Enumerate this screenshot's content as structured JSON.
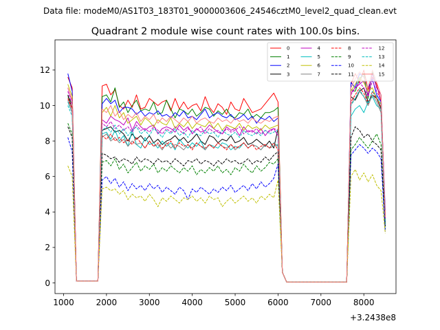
{
  "figure": {
    "suptitle": "Data file: modeM0/AS1T03_183T01_9000003606_24546cztM0_level2_quad_clean.evt"
  },
  "chart_data": {
    "type": "line",
    "title": "Quadrant 2 module wise count rates with 100.0s bins.",
    "xlabel": "",
    "ylabel": "",
    "x_offset_label": "+3.2438e8",
    "xlim": [
      800,
      8750
    ],
    "ylim": [
      -0.6,
      13.7
    ],
    "xticks": [
      1000,
      2000,
      3000,
      4000,
      5000,
      6000,
      7000,
      8000
    ],
    "yticks": [
      0,
      2,
      4,
      6,
      8,
      10,
      12
    ],
    "grid": false,
    "legend_position": "top-right",
    "legend_columns": 4,
    "x": [
      1100,
      1200,
      1300,
      1800,
      1900,
      2000,
      2100,
      2200,
      2300,
      2400,
      2500,
      2600,
      2700,
      2800,
      2900,
      3000,
      3100,
      3200,
      3300,
      3400,
      3500,
      3600,
      3700,
      3800,
      3900,
      4000,
      4100,
      4200,
      4300,
      4400,
      4500,
      4600,
      4700,
      4800,
      4900,
      5000,
      5100,
      5200,
      5300,
      5400,
      5500,
      5600,
      5700,
      5800,
      5900,
      6000,
      6100,
      6200,
      7600,
      7700,
      7800,
      7900,
      8000,
      8100,
      8200,
      8300,
      8400,
      8500
    ],
    "series": [
      {
        "name": "0",
        "color": "#ff0000",
        "dash": "solid",
        "values": [
          11.6,
          11.0,
          0.1,
          0.1,
          11.1,
          11.2,
          10.6,
          10.9,
          10.0,
          9.8,
          10.3,
          9.9,
          10.6,
          9.8,
          9.9,
          10.4,
          10.2,
          10.0,
          10.2,
          10.3,
          9.7,
          10.4,
          9.8,
          10.2,
          9.8,
          10.0,
          10.1,
          9.7,
          10.5,
          9.9,
          9.6,
          10.1,
          9.9,
          9.5,
          10.2,
          9.8,
          9.7,
          10.4,
          10.0,
          9.6,
          9.7,
          9.8,
          10.1,
          10.4,
          10.7,
          10.2,
          0.6,
          0.05,
          0.05,
          11.2,
          11.8,
          11.3,
          12.0,
          10.9,
          11.6,
          11.2,
          10.2,
          3.8
        ]
      },
      {
        "name": "1",
        "color": "#008000",
        "dash": "solid",
        "values": [
          10.5,
          10.1,
          0.1,
          0.1,
          10.5,
          10.6,
          10.2,
          11.0,
          9.9,
          10.2,
          9.6,
          10.0,
          10.3,
          9.7,
          9.8,
          9.7,
          10.2,
          9.5,
          9.6,
          10.3,
          9.8,
          9.3,
          9.8,
          9.7,
          9.5,
          9.8,
          9.4,
          9.6,
          9.9,
          9.8,
          9.4,
          9.7,
          9.5,
          9.8,
          9.4,
          9.3,
          9.6,
          9.5,
          9.8,
          9.3,
          9.5,
          9.3,
          9.6,
          9.6,
          9.7,
          9.9,
          0.6,
          0.05,
          0.05,
          10.9,
          10.8,
          11.5,
          11.8,
          10.4,
          11.9,
          11.0,
          10.6,
          3.6
        ]
      },
      {
        "name": "2",
        "color": "#0000ff",
        "dash": "solid",
        "values": [
          11.8,
          10.8,
          0.1,
          0.1,
          10.1,
          10.4,
          10.1,
          10.3,
          9.6,
          9.9,
          9.9,
          9.8,
          9.5,
          9.7,
          9.4,
          9.6,
          9.5,
          9.7,
          9.4,
          9.5,
          9.3,
          9.6,
          9.4,
          9.7,
          9.3,
          9.4,
          9.2,
          9.5,
          9.8,
          9.3,
          9.5,
          9.6,
          9.4,
          9.3,
          9.5,
          9.2,
          9.3,
          9.5,
          9.2,
          9.4,
          9.0,
          9.3,
          9.2,
          9.4,
          9.1,
          9.3,
          0.6,
          0.05,
          0.05,
          11.3,
          11.0,
          11.8,
          11.6,
          11.0,
          11.5,
          10.6,
          10.2,
          4.1
        ]
      },
      {
        "name": "3",
        "color": "#000000",
        "dash": "solid",
        "values": [
          10.6,
          9.8,
          0.1,
          0.1,
          8.6,
          8.7,
          8.8,
          8.5,
          8.6,
          8.4,
          8.0,
          8.4,
          8.1,
          8.3,
          8.0,
          8.3,
          7.9,
          8.1,
          7.8,
          8.0,
          8.1,
          8.3,
          8.0,
          8.2,
          7.9,
          8.1,
          8.4,
          8.0,
          7.8,
          8.3,
          8.2,
          7.9,
          8.1,
          8.0,
          8.3,
          7.9,
          8.0,
          8.2,
          7.8,
          7.9,
          8.1,
          7.9,
          7.7,
          8.0,
          7.6,
          8.7,
          0.6,
          0.05,
          0.05,
          10.5,
          10.3,
          10.8,
          11.0,
          10.2,
          10.6,
          10.4,
          9.8,
          3.5
        ]
      },
      {
        "name": "4",
        "color": "#bf00bf",
        "dash": "solid",
        "values": [
          11.0,
          10.2,
          0.1,
          0.1,
          9.2,
          9.0,
          9.4,
          9.2,
          9.1,
          8.9,
          9.3,
          8.6,
          9.1,
          8.8,
          8.6,
          8.8,
          8.9,
          8.4,
          8.7,
          8.8,
          8.7,
          8.5,
          8.9,
          8.6,
          8.8,
          8.4,
          8.7,
          8.5,
          8.6,
          8.9,
          8.7,
          8.5,
          8.4,
          8.8,
          8.6,
          8.7,
          8.3,
          8.8,
          8.5,
          8.6,
          8.4,
          8.7,
          8.3,
          8.6,
          8.7,
          8.3,
          0.6,
          0.05,
          0.05,
          10.7,
          11.0,
          11.2,
          11.4,
          10.6,
          11.8,
          11.0,
          10.6,
          3.7
        ]
      },
      {
        "name": "5",
        "color": "#00bfbf",
        "dash": "solid",
        "values": [
          10.2,
          9.6,
          0.1,
          0.1,
          8.4,
          8.5,
          8.1,
          8.6,
          8.0,
          8.3,
          7.7,
          8.6,
          7.8,
          7.6,
          8.2,
          7.8,
          7.9,
          7.6,
          8.0,
          7.7,
          7.9,
          7.5,
          8.1,
          7.8,
          7.6,
          7.9,
          7.7,
          8.0,
          7.5,
          7.8,
          7.7,
          7.6,
          7.9,
          7.8,
          7.5,
          7.7,
          7.6,
          7.9,
          7.6,
          7.8,
          7.7,
          7.5,
          7.8,
          7.6,
          7.9,
          7.7,
          0.6,
          0.05,
          0.05,
          9.4,
          9.8,
          10.0,
          9.6,
          10.2,
          10.5,
          10.0,
          9.8,
          3.3
        ]
      },
      {
        "name": "6",
        "color": "#bfbf00",
        "dash": "solid",
        "values": [
          11.2,
          10.5,
          0.1,
          0.1,
          9.6,
          9.9,
          9.4,
          10.0,
          9.3,
          9.6,
          9.0,
          9.2,
          9.4,
          8.9,
          9.3,
          9.1,
          8.8,
          9.2,
          9.0,
          8.9,
          9.3,
          8.7,
          9.0,
          8.8,
          9.1,
          8.7,
          9.0,
          8.9,
          8.8,
          9.1,
          8.7,
          9.0,
          8.6,
          8.9,
          8.8,
          8.7,
          9.0,
          8.6,
          8.9,
          8.7,
          8.8,
          8.6,
          8.9,
          8.7,
          8.8,
          8.9,
          0.6,
          0.05,
          0.05,
          10.8,
          11.2,
          11.6,
          11.3,
          10.8,
          11.0,
          10.4,
          10.1,
          3.6
        ]
      },
      {
        "name": "7",
        "color": "#808080",
        "dash": "solid",
        "values": [
          10.3,
          9.6,
          0.1,
          0.1,
          8.2,
          8.4,
          8.0,
          8.2,
          7.9,
          8.1,
          7.7,
          8.0,
          7.8,
          7.9,
          7.6,
          8.0,
          7.7,
          7.8,
          7.5,
          7.9,
          7.6,
          7.8,
          7.7,
          7.5,
          7.8,
          7.6,
          7.9,
          7.7,
          7.5,
          7.8,
          7.6,
          7.9,
          7.7,
          7.6,
          7.8,
          7.5,
          7.7,
          7.9,
          7.6,
          7.8,
          7.7,
          7.5,
          7.8,
          7.6,
          7.7,
          7.8,
          0.6,
          0.05,
          0.05,
          10.1,
          10.4,
          10.8,
          10.5,
          10.0,
          10.6,
          10.2,
          9.6,
          3.4
        ]
      },
      {
        "name": "8",
        "color": "#ff0000",
        "dash": "dashed",
        "values": [
          10.4,
          9.8,
          0.1,
          0.1,
          8.3,
          8.1,
          8.4,
          8.0,
          8.2,
          7.9,
          8.1,
          7.8,
          8.2,
          7.9,
          7.6,
          8.0,
          7.7,
          7.9,
          7.6,
          7.8,
          8.0,
          7.6,
          7.9,
          7.7,
          7.8,
          7.5,
          7.9,
          7.7,
          7.6,
          7.8,
          7.6,
          7.9,
          7.7,
          7.5,
          7.8,
          7.6,
          7.7,
          7.9,
          7.6,
          7.8,
          7.5,
          7.7,
          7.8,
          7.6,
          7.9,
          7.5,
          0.6,
          0.05,
          0.05,
          10.2,
          10.6,
          11.0,
          10.7,
          10.1,
          10.8,
          10.4,
          9.9,
          3.5
        ]
      },
      {
        "name": "9",
        "color": "#008000",
        "dash": "dashed",
        "values": [
          9.0,
          8.4,
          0.1,
          0.1,
          6.8,
          6.9,
          6.6,
          7.0,
          6.4,
          6.7,
          6.2,
          6.5,
          6.8,
          6.3,
          6.6,
          6.4,
          6.7,
          6.2,
          6.5,
          6.3,
          6.6,
          6.4,
          6.2,
          6.5,
          6.3,
          6.6,
          6.1,
          6.4,
          6.2,
          6.5,
          6.3,
          6.6,
          6.2,
          6.4,
          6.1,
          6.5,
          6.3,
          6.7,
          6.4,
          6.2,
          6.6,
          6.3,
          6.5,
          6.8,
          6.7,
          7.0,
          0.6,
          0.05,
          0.05,
          7.5,
          7.8,
          8.2,
          7.9,
          7.6,
          8.0,
          8.4,
          7.8,
          3.0
        ]
      },
      {
        "name": "10",
        "color": "#0000ff",
        "dash": "dashed",
        "values": [
          8.2,
          7.4,
          0.1,
          0.1,
          5.8,
          6.0,
          5.6,
          5.9,
          5.4,
          5.7,
          5.2,
          5.6,
          5.3,
          5.5,
          5.2,
          5.6,
          5.3,
          5.5,
          5.1,
          5.4,
          5.2,
          5.0,
          5.4,
          5.2,
          4.7,
          5.3,
          5.1,
          5.4,
          5.2,
          5.0,
          5.3,
          5.1,
          5.4,
          5.2,
          5.5,
          5.1,
          5.3,
          5.5,
          5.2,
          5.6,
          5.3,
          5.7,
          5.4,
          5.6,
          5.9,
          6.7,
          0.6,
          0.05,
          0.05,
          7.2,
          7.5,
          7.8,
          7.6,
          7.3,
          7.6,
          7.4,
          7.0,
          2.9
        ]
      },
      {
        "name": "11",
        "color": "#000000",
        "dash": "dashed",
        "values": [
          8.8,
          8.2,
          0.1,
          0.1,
          7.3,
          7.2,
          7.0,
          7.1,
          6.8,
          7.0,
          6.9,
          6.7,
          7.1,
          6.8,
          7.0,
          6.9,
          6.7,
          7.0,
          6.8,
          6.9,
          6.7,
          7.0,
          6.8,
          6.6,
          6.9,
          6.8,
          7.0,
          6.7,
          6.9,
          6.8,
          6.6,
          6.9,
          6.7,
          7.0,
          6.8,
          6.9,
          6.7,
          6.8,
          7.0,
          6.7,
          6.9,
          6.8,
          7.1,
          6.9,
          7.2,
          7.4,
          0.6,
          0.05,
          0.05,
          8.2,
          8.8,
          8.6,
          8.2,
          8.4,
          8.0,
          7.8,
          7.5,
          3.2
        ]
      },
      {
        "name": "12",
        "color": "#bf00bf",
        "dash": "dashed",
        "values": [
          10.8,
          10.0,
          0.1,
          0.1,
          9.0,
          8.8,
          9.1,
          8.7,
          8.9,
          8.6,
          8.8,
          8.5,
          8.9,
          8.6,
          8.7,
          8.5,
          8.8,
          8.6,
          8.4,
          8.7,
          8.5,
          8.8,
          8.6,
          8.4,
          8.7,
          8.5,
          8.6,
          8.8,
          8.4,
          8.7,
          8.5,
          8.6,
          8.4,
          8.7,
          8.5,
          8.6,
          8.8,
          8.4,
          8.6,
          8.5,
          8.7,
          8.4,
          8.6,
          8.5,
          8.7,
          8.6,
          0.6,
          0.05,
          0.05,
          10.6,
          11.0,
          11.3,
          11.0,
          10.5,
          11.4,
          10.8,
          10.3,
          3.6
        ]
      },
      {
        "name": "13",
        "color": "#00bfbf",
        "dash": "dashed",
        "values": [
          10.0,
          9.4,
          0.1,
          0.1,
          8.6,
          8.8,
          8.5,
          8.9,
          8.4,
          8.7,
          8.3,
          8.6,
          8.8,
          8.4,
          8.6,
          8.3,
          8.7,
          8.5,
          8.2,
          8.6,
          8.4,
          8.7,
          8.3,
          8.5,
          8.2,
          8.6,
          8.4,
          8.3,
          8.6,
          8.4,
          8.5,
          8.2,
          8.6,
          8.4,
          8.3,
          8.5,
          8.2,
          8.6,
          8.4,
          8.3,
          8.5,
          8.3,
          8.6,
          8.4,
          8.5,
          8.6,
          0.6,
          0.05,
          0.05,
          10.0,
          10.4,
          10.9,
          10.5,
          10.1,
          10.8,
          10.5,
          10.0,
          3.4
        ]
      },
      {
        "name": "14",
        "color": "#bfbf00",
        "dash": "dashed",
        "values": [
          6.6,
          6.0,
          0.1,
          0.1,
          5.3,
          5.4,
          5.2,
          5.3,
          5.0,
          5.2,
          4.7,
          5.0,
          4.8,
          4.9,
          4.6,
          5.0,
          4.7,
          4.3,
          4.8,
          4.6,
          4.9,
          4.7,
          4.5,
          4.8,
          4.7,
          4.9,
          4.6,
          4.8,
          4.5,
          4.9,
          4.7,
          4.8,
          4.3,
          4.6,
          4.8,
          4.5,
          4.7,
          4.9,
          4.6,
          4.8,
          4.5,
          4.9,
          4.7,
          5.0,
          4.8,
          5.8,
          0.6,
          0.05,
          0.05,
          6.0,
          6.4,
          5.8,
          6.2,
          5.7,
          6.1,
          5.5,
          5.2,
          2.8
        ]
      },
      {
        "name": "15",
        "color": "#ff7f7f",
        "dash": "solid",
        "values": [
          11.0,
          10.3,
          0.1,
          0.1,
          9.8,
          9.6,
          10.0,
          9.4,
          9.7,
          9.2,
          9.5,
          9.3,
          9.6,
          9.1,
          9.4,
          9.2,
          9.5,
          9.0,
          9.3,
          9.1,
          9.4,
          9.2,
          9.0,
          9.3,
          9.1,
          9.4,
          9.0,
          9.2,
          9.3,
          9.1,
          9.0,
          9.3,
          9.1,
          9.2,
          9.0,
          9.3,
          9.1,
          9.2,
          9.0,
          9.3,
          9.1,
          9.0,
          9.2,
          9.1,
          9.3,
          9.4,
          0.6,
          0.05,
          0.05,
          11.0,
          11.5,
          11.9,
          11.6,
          11.0,
          12.0,
          11.3,
          10.6,
          3.7
        ]
      }
    ]
  }
}
